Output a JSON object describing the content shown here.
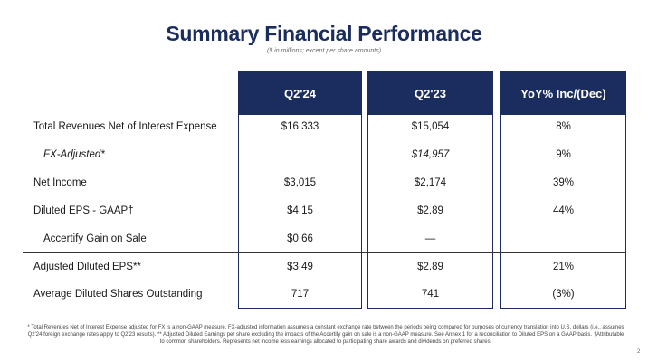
{
  "title": "Summary Financial Performance",
  "subtitle": "($ in millions; except per share amounts)",
  "columns": [
    "Q2'24",
    "Q2'23",
    "YoY% Inc/(Dec)"
  ],
  "rows": [
    {
      "label": "Total Revenues Net of Interest Expense",
      "values": [
        "$16,333",
        "$15,054",
        "8%"
      ]
    },
    {
      "label": "FX-Adjusted*",
      "values": [
        "",
        "$14,957",
        "9%"
      ]
    },
    {
      "label": "Net Income",
      "values": [
        "$3,015",
        "$2,174",
        "39%"
      ]
    },
    {
      "label": "Diluted EPS - GAAP†",
      "values": [
        "$4.15",
        "$2.89",
        "44%"
      ]
    },
    {
      "label": "Accertify Gain on Sale",
      "values": [
        "$0.66",
        "—",
        ""
      ]
    },
    {
      "label": "Adjusted Diluted EPS**",
      "values": [
        "$3.49",
        "$2.89",
        "21%"
      ]
    },
    {
      "label": "Average Diluted Shares Outstanding",
      "values": [
        "717",
        "741",
        "(3%)"
      ]
    }
  ],
  "footnote": "* Total Revenues Net of Interest Expense adjusted for FX is a non-GAAP measure. FX-adjusted information assumes a constant exchange rate between the periods being compared for purposes of currency translation into U.S. dollars (i.e., assumes Q2'24 foreign exchange rates apply to Q2'23 results). ** Adjusted Diluted Earnings per share excluding the impacts of the Accertify gain on sale is a non-GAAP measure. See Annex 1 for a reconciliation to Diluted EPS on a GAAP basis. †Attributable to common shareholders. Represents net income less earnings allocated to participating share awards and dividends on preferred shares.",
  "page_number": "2"
}
